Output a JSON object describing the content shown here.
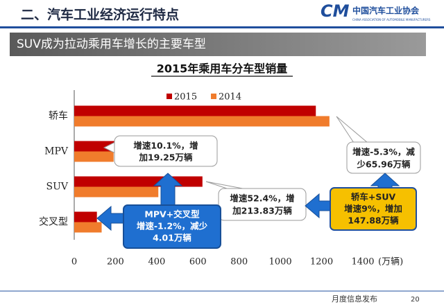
{
  "header": {
    "title": "二、汽车工业经济运行特点",
    "logo": "中国汽车工业协会",
    "logo_en": "CHINA ASSOCIATION OF AUTOMOBILE MANUFACTURERS"
  },
  "banner": "SUV成为拉动乘用车增长的主要车型",
  "footer": {
    "text": "月度信息发布",
    "page": "20"
  },
  "chart_data": {
    "type": "hbar",
    "title": "2015年乘用车分车型销量",
    "categories": [
      "轿车",
      "MPV",
      "SUV",
      "交叉型"
    ],
    "series": [
      {
        "name": "2015",
        "color": "#c00000",
        "values": [
          1172,
          211,
          622,
          110
        ]
      },
      {
        "name": "2014",
        "color": "#f07c2c",
        "values": [
          1238,
          191,
          408,
          133
        ]
      }
    ],
    "xlim": [
      0,
      1400
    ],
    "xticks": [
      0,
      200,
      400,
      600,
      800,
      1000,
      1200,
      1400
    ],
    "xlabel": "(万辆)",
    "annotations": [
      [
        "增速10.1%，增",
        "加19.25万辆"
      ],
      [
        "增速-5.3%，减",
        "少65.96万辆"
      ],
      [
        "增速52.4%，增",
        "加213.83万辆"
      ],
      [
        "MPV+交叉型",
        "增速-1.2%，减少",
        "4.01万辆"
      ],
      [
        "轿车+SUV",
        "增速9%，增加",
        "147.88万辆"
      ]
    ]
  }
}
